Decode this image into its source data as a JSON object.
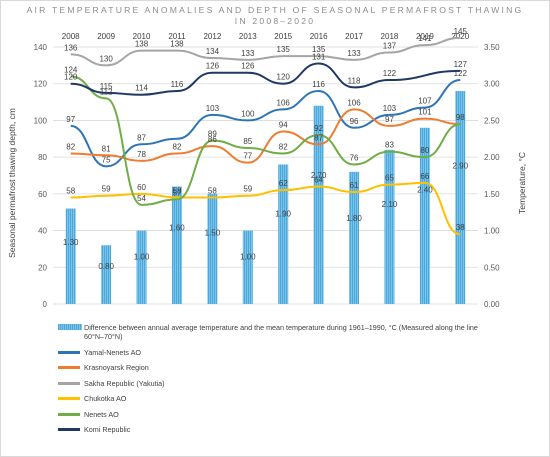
{
  "chart_data": {
    "type": "bar+line",
    "title": "AIR TEMPERATURE ANOMALIES AND DEPTH OF SEASONAL PERMAFROST THAWING",
    "subtitle": "IN 2008–2020",
    "xlabel": "",
    "ylabel": "Seasonal permafrost thawing depth, cm",
    "y2label": "Temperature, °C",
    "ylim": [
      0,
      140
    ],
    "yticks": [
      0,
      20,
      40,
      60,
      80,
      100,
      120,
      140
    ],
    "y2lim": [
      0,
      3.5
    ],
    "y2ticks": [
      "0.00",
      "0.50",
      "1.00",
      "1.50",
      "2.00",
      "2.50",
      "3.00",
      "3.50"
    ],
    "categories": [
      "2008",
      "2009",
      "2010",
      "2011",
      "2012",
      "2013",
      "2015",
      "2016",
      "2017",
      "2018",
      "2019",
      "2020"
    ],
    "bar_series": {
      "name": "Difference between annual average temperature and the mean temperature during 1961–1990, °C (Measured along the line 60°N–70°N)",
      "axis": "right",
      "color": "#5bb4e5",
      "values": [
        1.3,
        0.8,
        1.0,
        1.6,
        1.5,
        1.0,
        1.9,
        2.7,
        1.8,
        2.1,
        2.4,
        2.9
      ],
      "labels": [
        "1.30",
        "0.80",
        "1.00",
        "1.60",
        "1.50",
        "1.00",
        "1.90",
        "2.70",
        "1.80",
        "2.10",
        "2.40",
        "2.90"
      ]
    },
    "series": [
      {
        "name": "Yamal-Nenets AO",
        "color": "#2e75b6",
        "values": [
          97,
          75,
          87,
          90,
          103,
          100,
          106,
          116,
          96,
          103,
          107,
          122
        ],
        "labels": [
          "97",
          "75",
          "87",
          "",
          "103",
          "100",
          "106",
          "116",
          "96",
          "103",
          "107",
          "122"
        ]
      },
      {
        "name": "Krasnoyarsk Region",
        "color": "#ed7d31",
        "values": [
          82,
          81,
          78,
          82,
          86,
          77,
          94,
          87,
          106,
          97,
          101,
          98
        ],
        "labels": [
          "82",
          "81",
          "78",
          "82",
          "86",
          "77",
          "94",
          "87",
          "106",
          "97",
          "101",
          ""
        ]
      },
      {
        "name": "Sakha Republic (Yakutia)",
        "color": "#a5a5a5",
        "values": [
          136,
          130,
          138,
          138,
          134,
          133,
          135,
          135,
          133,
          137,
          141,
          145
        ],
        "labels": [
          "136",
          "130",
          "138",
          "138",
          "134",
          "133",
          "135",
          "135",
          "133",
          "137",
          "141",
          "145"
        ]
      },
      {
        "name": "Chukotka AO",
        "color": "#ffc000",
        "values": [
          58,
          59,
          60,
          58,
          58,
          59,
          62,
          64,
          61,
          65,
          66,
          38
        ],
        "labels": [
          "58",
          "59",
          "60",
          "58",
          "58",
          "59",
          "62",
          "64",
          "61",
          "65",
          "66",
          "38"
        ]
      },
      {
        "name": "Nenets AO",
        "color": "#70ad47",
        "values": [
          124,
          112,
          54,
          57,
          89,
          85,
          82,
          92,
          76,
          83,
          80,
          98
        ],
        "labels": [
          "124",
          "112",
          "54",
          "57",
          "89",
          "85",
          "82",
          "92",
          "76",
          "83",
          "80",
          "98"
        ]
      },
      {
        "name": "Komi Republic",
        "color": "#1f3864",
        "values": [
          120,
          115,
          114,
          116,
          126,
          126,
          120,
          131,
          118,
          122,
          null,
          127
        ],
        "labels": [
          "120",
          "115",
          "114",
          "116",
          "126",
          "126",
          "120",
          "131",
          "118",
          "122",
          "",
          "127"
        ]
      }
    ],
    "grid": true,
    "legend_position": "bottom"
  }
}
